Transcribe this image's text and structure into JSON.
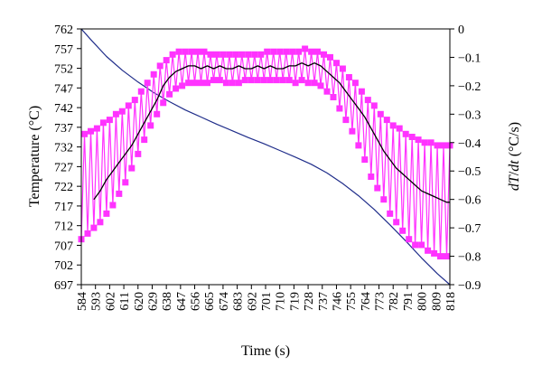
{
  "chart_data": {
    "type": "line",
    "xlabel": "Time (s)",
    "ylabel_left": "Temperature (°C)",
    "ylabel_right": "dT/dt (°C/s)",
    "ylabel_right_parts": {
      "num": "dT",
      "sep": "/",
      "den": "dt",
      "unit": "(°C/s)"
    },
    "grid": false,
    "legend": "none",
    "x_tick_labels": [
      "584",
      "593",
      "602",
      "611",
      "620",
      "629",
      "638",
      "647",
      "656",
      "665",
      "674",
      "683",
      "692",
      "701",
      "710",
      "719",
      "728",
      "737",
      "746",
      "755",
      "764",
      "773",
      "782",
      "791",
      "800",
      "809",
      "818"
    ],
    "xlim": [
      584,
      818
    ],
    "y_left_ticks": [
      "762",
      "757",
      "752",
      "747",
      "742",
      "737",
      "732",
      "727",
      "722",
      "717",
      "712",
      "707",
      "702",
      "697"
    ],
    "y_left_lim": [
      697,
      762
    ],
    "y_right_ticks": [
      "0",
      "−0.1",
      "−0.2",
      "−0.3",
      "−0.4",
      "−0.5",
      "−0.6",
      "−0.7",
      "−0.8",
      "−0.9"
    ],
    "y_right_lim": [
      -0.9,
      0
    ],
    "colors": {
      "temperature": "#1f2d8a",
      "rate_markers": "#ff33ff",
      "rate_smoothed": "#000000"
    },
    "series": [
      {
        "key": "temperature",
        "axis": "left",
        "style": "line",
        "x": [
          584,
          590,
          600,
          610,
          620,
          630,
          640,
          650,
          660,
          670,
          680,
          690,
          700,
          710,
          720,
          730,
          740,
          750,
          760,
          770,
          780,
          790,
          800,
          810,
          818
        ],
        "y": [
          762,
          759.3,
          755,
          751.5,
          748.5,
          745.8,
          743.5,
          741.4,
          739.6,
          737.8,
          736.1,
          734.4,
          732.8,
          731.1,
          729.4,
          727.6,
          725.4,
          722.7,
          719.6,
          716.1,
          712.2,
          708.1,
          703.8,
          699.8,
          697
        ]
      },
      {
        "key": "rate_markers",
        "axis": "right",
        "style": "zigzag-markers",
        "x": [
          584,
          586,
          588,
          590,
          592,
          594,
          596,
          598,
          600,
          602,
          604,
          606,
          608,
          610,
          612,
          614,
          616,
          618,
          620,
          622,
          624,
          626,
          628,
          630,
          632,
          634,
          636,
          638,
          640,
          642,
          644,
          646,
          648,
          650,
          652,
          654,
          656,
          658,
          660,
          662,
          664,
          666,
          668,
          670,
          672,
          674,
          676,
          678,
          680,
          682,
          684,
          686,
          688,
          690,
          692,
          694,
          696,
          698,
          700,
          702,
          704,
          706,
          708,
          710,
          712,
          714,
          716,
          718,
          720,
          722,
          724,
          726,
          728,
          730,
          732,
          734,
          736,
          738,
          740,
          742,
          744,
          746,
          748,
          750,
          752,
          754,
          756,
          758,
          760,
          762,
          764,
          766,
          768,
          770,
          772,
          774,
          776,
          778,
          780,
          782,
          784,
          786,
          788,
          790,
          792,
          794,
          796,
          798,
          800,
          802,
          804,
          806,
          808,
          810,
          812,
          814,
          816,
          818
        ],
        "y": [
          -0.74,
          -0.37,
          -0.72,
          -0.36,
          -0.7,
          -0.35,
          -0.68,
          -0.33,
          -0.65,
          -0.32,
          -0.62,
          -0.3,
          -0.58,
          -0.29,
          -0.54,
          -0.27,
          -0.49,
          -0.25,
          -0.44,
          -0.22,
          -0.39,
          -0.19,
          -0.34,
          -0.16,
          -0.3,
          -0.13,
          -0.26,
          -0.11,
          -0.23,
          -0.09,
          -0.21,
          -0.08,
          -0.2,
          -0.08,
          -0.19,
          -0.08,
          -0.19,
          -0.08,
          -0.19,
          -0.08,
          -0.19,
          -0.09,
          -0.18,
          -0.09,
          -0.18,
          -0.09,
          -0.19,
          -0.09,
          -0.19,
          -0.09,
          -0.19,
          -0.09,
          -0.18,
          -0.09,
          -0.18,
          -0.09,
          -0.18,
          -0.09,
          -0.18,
          -0.08,
          -0.18,
          -0.08,
          -0.18,
          -0.08,
          -0.18,
          -0.08,
          -0.18,
          -0.08,
          -0.19,
          -0.08,
          -0.18,
          -0.07,
          -0.19,
          -0.08,
          -0.19,
          -0.08,
          -0.2,
          -0.09,
          -0.22,
          -0.1,
          -0.24,
          -0.12,
          -0.28,
          -0.14,
          -0.32,
          -0.17,
          -0.36,
          -0.19,
          -0.41,
          -0.22,
          -0.46,
          -0.25,
          -0.52,
          -0.27,
          -0.56,
          -0.3,
          -0.6,
          -0.32,
          -0.65,
          -0.34,
          -0.68,
          -0.35,
          -0.71,
          -0.37,
          -0.74,
          -0.38,
          -0.76,
          -0.39,
          -0.76,
          -0.4,
          -0.78,
          -0.4,
          -0.79,
          -0.41,
          -0.8,
          -0.41,
          -0.8,
          -0.41
        ]
      },
      {
        "key": "rate_smoothed",
        "axis": "right",
        "style": "line",
        "x": [
          592,
          596,
          600,
          604,
          608,
          612,
          616,
          620,
          624,
          628,
          632,
          636,
          640,
          644,
          648,
          652,
          656,
          660,
          664,
          668,
          672,
          676,
          680,
          684,
          688,
          692,
          696,
          700,
          704,
          708,
          712,
          716,
          720,
          724,
          728,
          732,
          736,
          740,
          744,
          748,
          752,
          756,
          760,
          764,
          768,
          772,
          776,
          780,
          784,
          788,
          792,
          796,
          800,
          804,
          808,
          812,
          816,
          818
        ],
        "y": [
          -0.6,
          -0.57,
          -0.53,
          -0.5,
          -0.47,
          -0.44,
          -0.41,
          -0.37,
          -0.33,
          -0.29,
          -0.25,
          -0.2,
          -0.17,
          -0.15,
          -0.14,
          -0.13,
          -0.13,
          -0.14,
          -0.13,
          -0.14,
          -0.13,
          -0.14,
          -0.14,
          -0.13,
          -0.14,
          -0.14,
          -0.13,
          -0.14,
          -0.13,
          -0.14,
          -0.14,
          -0.13,
          -0.13,
          -0.12,
          -0.13,
          -0.12,
          -0.13,
          -0.15,
          -0.17,
          -0.19,
          -0.22,
          -0.25,
          -0.28,
          -0.31,
          -0.35,
          -0.39,
          -0.43,
          -0.46,
          -0.49,
          -0.51,
          -0.53,
          -0.55,
          -0.57,
          -0.58,
          -0.59,
          -0.6,
          -0.61,
          -0.61
        ]
      }
    ]
  }
}
